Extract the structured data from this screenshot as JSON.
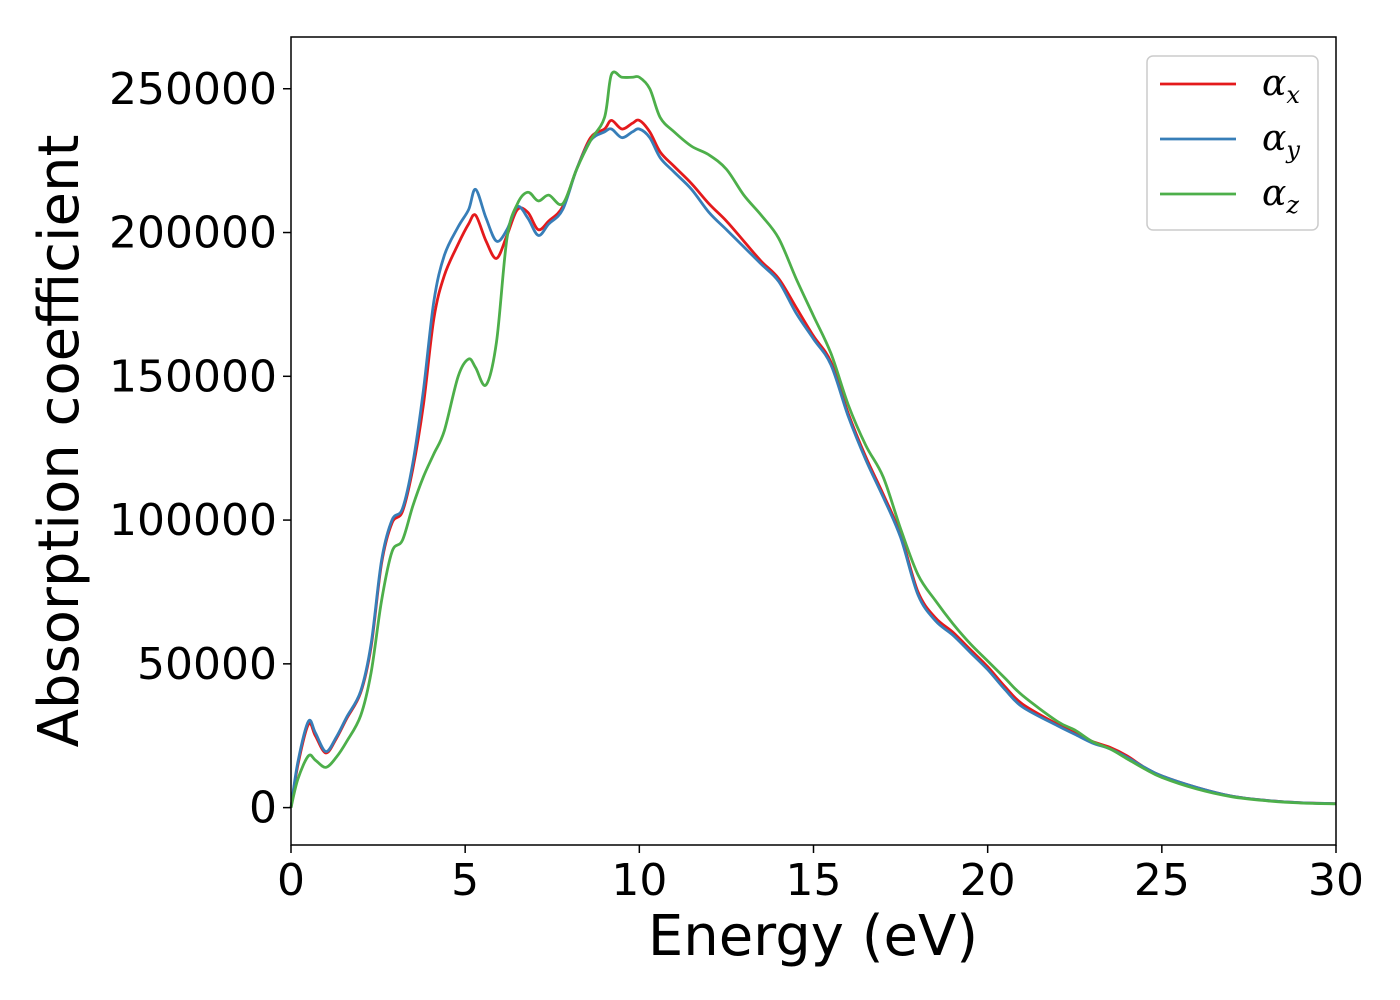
{
  "chart_data": {
    "type": "line",
    "xlabel": "Energy (eV)",
    "ylabel": "Absorption coefficient",
    "xlim": [
      0,
      30
    ],
    "ylim": [
      -13000,
      268000
    ],
    "xticks": [
      0,
      5,
      10,
      15,
      20,
      25,
      30
    ],
    "yticks": [
      0,
      50000,
      100000,
      150000,
      200000,
      250000
    ],
    "grid": false,
    "legend": "top-right",
    "series": [
      {
        "name": "α",
        "subscript": "x",
        "color": "#e41a1c",
        "x": [
          0,
          0.2,
          0.5,
          0.7,
          1.0,
          1.3,
          1.6,
          2.0,
          2.3,
          2.6,
          2.9,
          3.2,
          3.5,
          3.8,
          4.1,
          4.4,
          4.8,
          5.1,
          5.3,
          5.6,
          5.9,
          6.2,
          6.5,
          6.8,
          7.1,
          7.4,
          7.8,
          8.2,
          8.6,
          9.0,
          9.2,
          9.5,
          9.8,
          10.0,
          10.3,
          10.6,
          11.0,
          11.5,
          12.0,
          12.5,
          13.0,
          13.5,
          14.0,
          14.5,
          15.0,
          15.5,
          16.0,
          16.5,
          17.0,
          17.5,
          18.0,
          18.5,
          19.0,
          19.5,
          20.0,
          20.5,
          21.0,
          22.0,
          22.5,
          23.0,
          23.5,
          24.0,
          24.5,
          25.0,
          26.0,
          27.0,
          28.0,
          29.0,
          30.0
        ],
        "values": [
          0,
          15000,
          29000,
          25000,
          19000,
          24000,
          31000,
          40000,
          56000,
          85000,
          99000,
          103000,
          118000,
          140000,
          170000,
          185000,
          196000,
          203000,
          206000,
          197000,
          191000,
          199000,
          208000,
          207000,
          201000,
          204000,
          209000,
          222000,
          233000,
          236000,
          239000,
          236000,
          238000,
          239000,
          235000,
          228000,
          223000,
          217000,
          210000,
          204000,
          197000,
          190000,
          184000,
          174000,
          164000,
          155000,
          137000,
          122000,
          109000,
          95000,
          75000,
          66000,
          61000,
          55000,
          49000,
          42000,
          36000,
          29000,
          26000,
          23000,
          21000,
          18000,
          14000,
          11000,
          7000,
          4000,
          2500,
          1700,
          1400
        ]
      },
      {
        "name": "α",
        "subscript": "y",
        "color": "#377eb8",
        "x": [
          0,
          0.2,
          0.5,
          0.7,
          1.0,
          1.3,
          1.6,
          2.0,
          2.3,
          2.6,
          2.9,
          3.2,
          3.5,
          3.8,
          4.1,
          4.4,
          4.8,
          5.1,
          5.3,
          5.6,
          5.9,
          6.2,
          6.5,
          6.8,
          7.1,
          7.4,
          7.8,
          8.2,
          8.6,
          9.0,
          9.2,
          9.5,
          9.8,
          10.0,
          10.3,
          10.6,
          11.0,
          11.5,
          12.0,
          12.5,
          13.0,
          13.5,
          14.0,
          14.5,
          15.0,
          15.5,
          16.0,
          16.5,
          17.0,
          17.5,
          18.0,
          18.5,
          19.0,
          19.5,
          20.0,
          20.5,
          21.0,
          22.0,
          22.5,
          23.0,
          23.5,
          24.0,
          24.5,
          25.0,
          26.0,
          27.0,
          28.0,
          29.0,
          30.0
        ],
        "values": [
          0,
          16000,
          30000,
          26000,
          19500,
          24500,
          31500,
          40500,
          57000,
          86000,
          100000,
          104000,
          120000,
          145000,
          176000,
          192000,
          202000,
          208000,
          215000,
          205000,
          197000,
          201000,
          209000,
          205000,
          199000,
          203000,
          208000,
          222000,
          232000,
          235000,
          236000,
          233000,
          235000,
          236000,
          233000,
          226000,
          221000,
          215000,
          207000,
          201000,
          195000,
          189000,
          183000,
          172000,
          163000,
          154000,
          136000,
          121000,
          108000,
          94000,
          74000,
          65000,
          60000,
          54000,
          48000,
          41000,
          35000,
          28500,
          25500,
          22500,
          20500,
          17500,
          14000,
          11000,
          7000,
          4000,
          2500,
          1700,
          1400
        ]
      },
      {
        "name": "α",
        "subscript": "z",
        "color": "#4daf4a",
        "x": [
          0,
          0.2,
          0.5,
          0.7,
          1.0,
          1.3,
          1.6,
          2.0,
          2.3,
          2.6,
          2.9,
          3.2,
          3.5,
          3.8,
          4.1,
          4.4,
          4.8,
          5.1,
          5.3,
          5.6,
          5.9,
          6.2,
          6.5,
          6.8,
          7.1,
          7.4,
          7.8,
          8.2,
          8.6,
          9.0,
          9.2,
          9.5,
          9.8,
          10.0,
          10.3,
          10.6,
          11.0,
          11.5,
          12.0,
          12.5,
          13.0,
          13.5,
          14.0,
          14.5,
          15.0,
          15.5,
          16.0,
          16.5,
          17.0,
          17.5,
          18.0,
          18.5,
          19.0,
          19.5,
          20.0,
          20.5,
          21.0,
          22.0,
          22.5,
          23.0,
          23.5,
          24.0,
          24.5,
          25.0,
          26.0,
          27.0,
          28.0,
          29.0,
          30.0
        ],
        "values": [
          0,
          10000,
          18000,
          16500,
          14000,
          17500,
          23000,
          32000,
          47000,
          72000,
          89000,
          93000,
          105000,
          115000,
          123000,
          131000,
          150000,
          156000,
          153000,
          147000,
          162000,
          198000,
          210000,
          214000,
          211000,
          213000,
          210000,
          222000,
          232000,
          240000,
          255000,
          254000,
          254000,
          254000,
          250000,
          240000,
          235000,
          230000,
          227000,
          222000,
          213000,
          206000,
          198000,
          184000,
          171000,
          158000,
          140000,
          126000,
          115000,
          97000,
          81000,
          72000,
          64000,
          57000,
          51000,
          45000,
          39000,
          30000,
          27000,
          23000,
          20500,
          17000,
          13500,
          10500,
          6500,
          3800,
          2400,
          1600,
          1300
        ]
      }
    ]
  }
}
